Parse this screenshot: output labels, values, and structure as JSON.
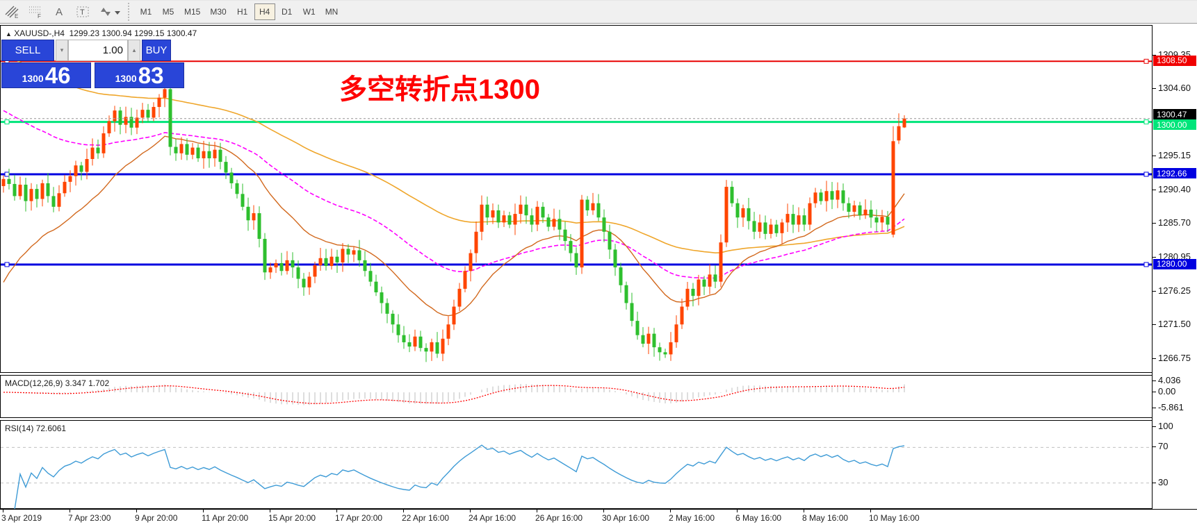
{
  "toolbar": {
    "tools": [
      {
        "name": "indicators-tool-icon",
        "glyph": "hatch-e"
      },
      {
        "name": "fibonacci-tool-icon",
        "glyph": "grid-f"
      },
      {
        "name": "label-tool-icon",
        "glyph": "A"
      },
      {
        "name": "text-tool-icon",
        "glyph": "T"
      },
      {
        "name": "arrows-tool-icon",
        "glyph": "arrows"
      }
    ],
    "timeframes": [
      "M1",
      "M5",
      "M15",
      "M30",
      "H1",
      "H4",
      "D1",
      "W1",
      "MN"
    ],
    "active_timeframe": "H4"
  },
  "symbol_header": {
    "tick_arrow": "▲",
    "symbol": "XAUUSD-,H4",
    "open": "1299.23",
    "high": "1300.94",
    "low": "1299.15",
    "close": "1300.47"
  },
  "trade_panel": {
    "sell_label": "SELL",
    "buy_label": "BUY",
    "volume": "1.00",
    "down_arrow": "▾",
    "up_arrow": "▴",
    "sell_price_small": "1300",
    "sell_price_big": "46",
    "buy_price_small": "1300",
    "buy_price_big": "83",
    "panel_color": "#2945d8"
  },
  "annotation": {
    "text": "多空转折点1300",
    "color": "#ff0000"
  },
  "chart_data": {
    "type": "candlestick",
    "symbol": "XAUUSD-",
    "timeframe": "H4",
    "bull_color": "#ff4500",
    "bear_color": "#2ebf2e",
    "current_bar": {
      "open": 1299.23,
      "high": 1300.94,
      "low": 1299.15,
      "close": 1300.47
    },
    "closes": [
      1292.0,
      1291.3,
      1289.6,
      1291.2,
      1288.9,
      1290.6,
      1289.2,
      1291.4,
      1289.6,
      1288.1,
      1290.0,
      1291.6,
      1292.4,
      1293.9,
      1293.0,
      1294.8,
      1296.4,
      1295.6,
      1298.4,
      1300.1,
      1301.6,
      1299.6,
      1300.7,
      1299.2,
      1300.6,
      1301.7,
      1300.6,
      1302.1,
      1303.4,
      1304.6,
      1296.5,
      1295.6,
      1296.9,
      1295.4,
      1296.4,
      1294.9,
      1295.9,
      1294.9,
      1296.1,
      1294.4,
      1292.9,
      1291.4,
      1289.9,
      1288.1,
      1286.2,
      1287.2,
      1283.6,
      1278.9,
      1279.6,
      1280.2,
      1279.1,
      1280.6,
      1279.6,
      1278.0,
      1276.8,
      1278.3,
      1279.9,
      1280.9,
      1279.8,
      1281.1,
      1280.3,
      1282.2,
      1281.4,
      1282.0,
      1280.6,
      1279.1,
      1277.6,
      1276.1,
      1274.6,
      1273.1,
      1271.6,
      1270.1,
      1269.1,
      1268.5,
      1269.9,
      1268.3,
      1267.8,
      1269.1,
      1267.5,
      1269.6,
      1271.6,
      1274.1,
      1276.6,
      1279.1,
      1281.6,
      1284.6,
      1288.4,
      1286.6,
      1287.6,
      1285.9,
      1286.9,
      1285.6,
      1287.1,
      1288.4,
      1286.9,
      1285.6,
      1288.1,
      1286.6,
      1285.3,
      1286.4,
      1284.9,
      1283.3,
      1281.6,
      1279.6,
      1289.1,
      1287.6,
      1288.6,
      1286.6,
      1284.6,
      1282.1,
      1279.6,
      1277.1,
      1274.6,
      1272.1,
      1270.1,
      1268.9,
      1270.3,
      1268.4,
      1267.7,
      1267.4,
      1269.1,
      1271.6,
      1274.1,
      1276.6,
      1275.6,
      1277.9,
      1276.9,
      1278.6,
      1277.6,
      1283.1,
      1290.9,
      1288.6,
      1286.6,
      1287.9,
      1286.1,
      1284.6,
      1285.9,
      1284.3,
      1285.6,
      1284.4,
      1285.9,
      1287.1,
      1285.6,
      1286.9,
      1285.6,
      1288.6,
      1290.1,
      1288.9,
      1290.3,
      1289.1,
      1290.4,
      1288.6,
      1287.4,
      1288.3,
      1286.9,
      1287.7,
      1286.6,
      1285.9,
      1286.7,
      1285.6,
      1297.3,
      1299.4,
      1300.47
    ],
    "bar_overrides": {
      "29": {
        "h": 1305.5
      },
      "78": {
        "l": 1266.9
      },
      "119": {
        "l": 1266.9
      },
      "160": {
        "o": 1284.2,
        "h": 1299.4,
        "l": 1283.8
      },
      "161": {
        "o": 1297.4,
        "h": 1301.2,
        "l": 1296.9
      },
      "162": {
        "o": 1299.23,
        "h": 1300.94,
        "l": 1299.15,
        "c": 1300.47
      }
    },
    "hlines": [
      {
        "price": 1308.5,
        "color": "#e80000",
        "width": 2,
        "tag": "1308.50",
        "tag_bg": "#f00000"
      },
      {
        "price": 1300.0,
        "color": "#00e57a",
        "width": 3,
        "tag": "1300.00",
        "tag_bg": "#00e57a"
      },
      {
        "price": 1292.66,
        "color": "#0000e0",
        "width": 3,
        "tag": "1292.66",
        "tag_bg": "#0000e0"
      },
      {
        "price": 1280.0,
        "color": "#0000e0",
        "width": 3,
        "tag": "1280.00",
        "tag_bg": "#0000e0"
      }
    ],
    "current_price_line": {
      "price": 1300.47,
      "color": "#a8a8a8",
      "tag": "1300.47",
      "tag_bg": "#000000"
    },
    "ma_lines": [
      {
        "name": "ma-orange",
        "color": "#efa62b",
        "alpha": 0.022,
        "seed": 1310,
        "dash": "",
        "width": 1.6
      },
      {
        "name": "ma-magenta",
        "color": "#ff00ff",
        "alpha": 0.0408,
        "seed": 1302,
        "dash": "6,3",
        "width": 1.6
      },
      {
        "name": "ma-chocolate",
        "color": "#d2691e",
        "alpha": 0.095,
        "seed": 1276,
        "dash": "",
        "width": 1.4
      }
    ],
    "price_axis_ticks": [
      "1309.35",
      "1304.60",
      "1295.15",
      "1290.40",
      "1285.70",
      "1280.95",
      "1276.25",
      "1271.50",
      "1266.75"
    ]
  },
  "indicators": {
    "macd": {
      "label": "MACD(12,26,9)",
      "values": "3.347 1.702",
      "fast": 12,
      "slow": 26,
      "signal": 9,
      "axis_labels": [
        "4.036",
        "0.00",
        "-5.861"
      ],
      "histogram_color": "#c8c8c8",
      "signal_color": "#ff0000"
    },
    "rsi": {
      "label": "RSI(14)",
      "value": "72.6061",
      "period": 14,
      "axis_labels": [
        "100",
        "70",
        "30"
      ],
      "levels": [
        70,
        30
      ],
      "line_color": "#3e9bd6",
      "level_color": "#c0c0c0"
    }
  },
  "time_axis": {
    "labels": [
      {
        "text": "3 Apr 2019",
        "bar": 0
      },
      {
        "text": "7 Apr 23:00",
        "bar": 12
      },
      {
        "text": "9 Apr 20:00",
        "bar": 24
      },
      {
        "text": "11 Apr 20:00",
        "bar": 36
      },
      {
        "text": "15 Apr 20:00",
        "bar": 48
      },
      {
        "text": "17 Apr 20:00",
        "bar": 60
      },
      {
        "text": "22 Apr 16:00",
        "bar": 72
      },
      {
        "text": "24 Apr 16:00",
        "bar": 84
      },
      {
        "text": "26 Apr 16:00",
        "bar": 96
      },
      {
        "text": "30 Apr 16:00",
        "bar": 108
      },
      {
        "text": "2 May 16:00",
        "bar": 120
      },
      {
        "text": "6 May 16:00",
        "bar": 132
      },
      {
        "text": "8 May 16:00",
        "bar": 144
      },
      {
        "text": "10 May 16:00",
        "bar": 156
      }
    ]
  }
}
